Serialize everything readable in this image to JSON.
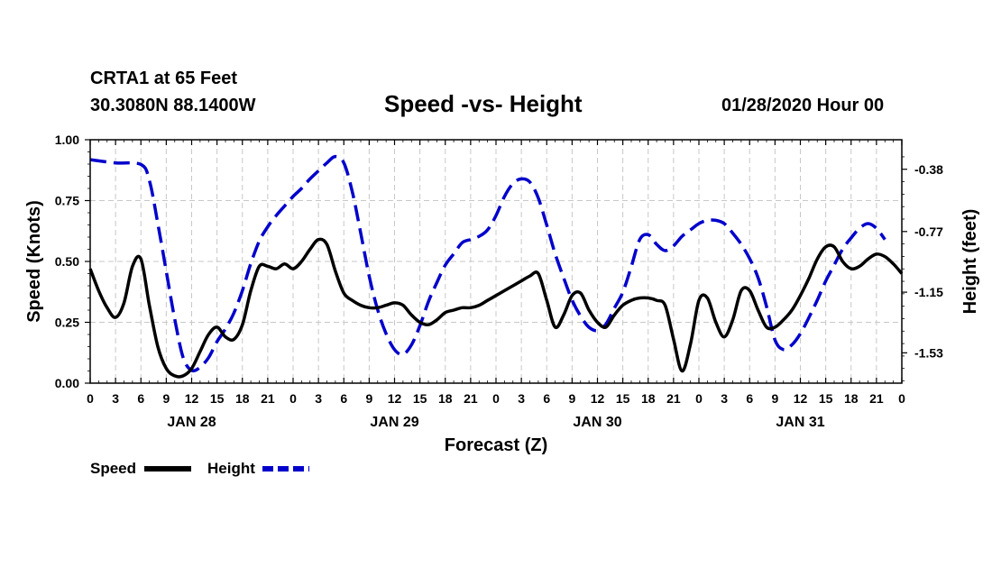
{
  "header": {
    "station": "CRTA1 at 65 Feet",
    "coords": "30.3080N 88.1400W",
    "title": "Speed -vs- Height",
    "datetime": "01/28/2020 Hour 00"
  },
  "chart_data": {
    "type": "line",
    "title": "Speed -vs- Height",
    "xlabel": "Forecast (Z)",
    "ylabel_left": "Speed (Knots)",
    "ylabel_right": "Height (feet)",
    "ylim_left": [
      0,
      1
    ],
    "ylim_right": [
      -1.72,
      -0.195
    ],
    "x_hours_range": [
      0,
      96
    ],
    "x_tick_labels": [
      "0",
      "3",
      "6",
      "9",
      "12",
      "15",
      "18",
      "21",
      "0",
      "3",
      "6",
      "9",
      "12",
      "15",
      "18",
      "21",
      "0",
      "3",
      "6",
      "9",
      "12",
      "15",
      "18",
      "21",
      "0",
      "3",
      "6",
      "9",
      "12",
      "15",
      "18",
      "21",
      "0"
    ],
    "day_labels": [
      {
        "hour": 12,
        "label": "JAN 28"
      },
      {
        "hour": 36,
        "label": "JAN 29"
      },
      {
        "hour": 60,
        "label": "JAN 30"
      },
      {
        "hour": 84,
        "label": "JAN 31"
      }
    ],
    "y_left_ticks": [
      "0.00",
      "0.25",
      "0.50",
      "0.75",
      "1.00"
    ],
    "y_right_ticks": [
      "-0.38",
      "-0.77",
      "-1.15",
      "-1.53"
    ],
    "grid": true,
    "series": [
      {
        "name": "Speed",
        "axis": "left",
        "color": "#000000",
        "style": "solid",
        "points": [
          [
            0,
            0.47
          ],
          [
            1,
            0.38
          ],
          [
            2,
            0.31
          ],
          [
            3,
            0.27
          ],
          [
            4,
            0.33
          ],
          [
            5,
            0.48
          ],
          [
            6,
            0.51
          ],
          [
            7,
            0.32
          ],
          [
            8,
            0.15
          ],
          [
            9,
            0.06
          ],
          [
            10,
            0.03
          ],
          [
            11,
            0.03
          ],
          [
            12,
            0.06
          ],
          [
            13,
            0.13
          ],
          [
            14,
            0.2
          ],
          [
            15,
            0.23
          ],
          [
            16,
            0.19
          ],
          [
            17,
            0.18
          ],
          [
            18,
            0.24
          ],
          [
            19,
            0.38
          ],
          [
            20,
            0.48
          ],
          [
            21,
            0.48
          ],
          [
            22,
            0.47
          ],
          [
            23,
            0.49
          ],
          [
            24,
            0.47
          ],
          [
            25,
            0.5
          ],
          [
            26,
            0.55
          ],
          [
            27,
            0.59
          ],
          [
            28,
            0.57
          ],
          [
            29,
            0.46
          ],
          [
            30,
            0.37
          ],
          [
            31,
            0.34
          ],
          [
            32,
            0.32
          ],
          [
            33,
            0.31
          ],
          [
            34,
            0.31
          ],
          [
            35,
            0.32
          ],
          [
            36,
            0.33
          ],
          [
            37,
            0.32
          ],
          [
            38,
            0.28
          ],
          [
            39,
            0.25
          ],
          [
            40,
            0.24
          ],
          [
            41,
            0.26
          ],
          [
            42,
            0.29
          ],
          [
            43,
            0.3
          ],
          [
            44,
            0.31
          ],
          [
            45,
            0.31
          ],
          [
            46,
            0.32
          ],
          [
            47,
            0.34
          ],
          [
            48,
            0.36
          ],
          [
            49,
            0.38
          ],
          [
            50,
            0.4
          ],
          [
            51,
            0.42
          ],
          [
            52,
            0.44
          ],
          [
            53,
            0.45
          ],
          [
            54,
            0.34
          ],
          [
            55,
            0.23
          ],
          [
            56,
            0.28
          ],
          [
            57,
            0.36
          ],
          [
            58,
            0.37
          ],
          [
            59,
            0.3
          ],
          [
            60,
            0.25
          ],
          [
            61,
            0.23
          ],
          [
            62,
            0.28
          ],
          [
            63,
            0.32
          ],
          [
            64,
            0.34
          ],
          [
            65,
            0.35
          ],
          [
            66,
            0.35
          ],
          [
            67,
            0.34
          ],
          [
            68,
            0.32
          ],
          [
            69,
            0.18
          ],
          [
            70,
            0.05
          ],
          [
            71,
            0.16
          ],
          [
            72,
            0.34
          ],
          [
            73,
            0.35
          ],
          [
            74,
            0.25
          ],
          [
            75,
            0.19
          ],
          [
            76,
            0.26
          ],
          [
            77,
            0.38
          ],
          [
            78,
            0.38
          ],
          [
            79,
            0.3
          ],
          [
            80,
            0.23
          ],
          [
            81,
            0.23
          ],
          [
            82,
            0.26
          ],
          [
            83,
            0.3
          ],
          [
            84,
            0.36
          ],
          [
            85,
            0.43
          ],
          [
            86,
            0.51
          ],
          [
            87,
            0.56
          ],
          [
            88,
            0.56
          ],
          [
            89,
            0.5
          ],
          [
            90,
            0.47
          ],
          [
            91,
            0.48
          ],
          [
            92,
            0.51
          ],
          [
            93,
            0.53
          ],
          [
            94,
            0.52
          ],
          [
            95,
            0.49
          ],
          [
            96,
            0.45
          ]
        ]
      },
      {
        "name": "Height",
        "axis": "right",
        "color": "#0000cc",
        "style": "dashed",
        "points": [
          [
            0,
            -0.32
          ],
          [
            3,
            -0.34
          ],
          [
            6,
            -0.35
          ],
          [
            7,
            -0.45
          ],
          [
            8,
            -0.72
          ],
          [
            9,
            -1.02
          ],
          [
            10,
            -1.32
          ],
          [
            11,
            -1.56
          ],
          [
            12,
            -1.64
          ],
          [
            13,
            -1.62
          ],
          [
            14,
            -1.56
          ],
          [
            15,
            -1.46
          ],
          [
            16,
            -1.38
          ],
          [
            17,
            -1.28
          ],
          [
            18,
            -1.14
          ],
          [
            19,
            -0.97
          ],
          [
            20,
            -0.83
          ],
          [
            21,
            -0.74
          ],
          [
            22,
            -0.67
          ],
          [
            23,
            -0.61
          ],
          [
            24,
            -0.55
          ],
          [
            25,
            -0.5
          ],
          [
            26,
            -0.44
          ],
          [
            27,
            -0.39
          ],
          [
            28,
            -0.34
          ],
          [
            29,
            -0.3
          ],
          [
            30,
            -0.34
          ],
          [
            31,
            -0.52
          ],
          [
            32,
            -0.78
          ],
          [
            33,
            -1.05
          ],
          [
            34,
            -1.26
          ],
          [
            35,
            -1.41
          ],
          [
            36,
            -1.51
          ],
          [
            37,
            -1.54
          ],
          [
            38,
            -1.48
          ],
          [
            39,
            -1.36
          ],
          [
            40,
            -1.21
          ],
          [
            41,
            -1.09
          ],
          [
            42,
            -0.98
          ],
          [
            43,
            -0.91
          ],
          [
            44,
            -0.84
          ],
          [
            45,
            -0.82
          ],
          [
            46,
            -0.8
          ],
          [
            47,
            -0.76
          ],
          [
            48,
            -0.67
          ],
          [
            49,
            -0.55
          ],
          [
            50,
            -0.47
          ],
          [
            51,
            -0.44
          ],
          [
            52,
            -0.46
          ],
          [
            53,
            -0.56
          ],
          [
            54,
            -0.73
          ],
          [
            55,
            -0.91
          ],
          [
            56,
            -1.06
          ],
          [
            57,
            -1.2
          ],
          [
            58,
            -1.3
          ],
          [
            59,
            -1.37
          ],
          [
            60,
            -1.39
          ],
          [
            61,
            -1.35
          ],
          [
            62,
            -1.25
          ],
          [
            63,
            -1.15
          ],
          [
            64,
            -0.99
          ],
          [
            65,
            -0.82
          ],
          [
            66,
            -0.79
          ],
          [
            67,
            -0.85
          ],
          [
            68,
            -0.89
          ],
          [
            69,
            -0.86
          ],
          [
            70,
            -0.8
          ],
          [
            71,
            -0.76
          ],
          [
            72,
            -0.72
          ],
          [
            73,
            -0.7
          ],
          [
            74,
            -0.7
          ],
          [
            75,
            -0.72
          ],
          [
            76,
            -0.78
          ],
          [
            77,
            -0.85
          ],
          [
            78,
            -0.94
          ],
          [
            79,
            -1.06
          ],
          [
            80,
            -1.24
          ],
          [
            81,
            -1.45
          ],
          [
            82,
            -1.51
          ],
          [
            83,
            -1.48
          ],
          [
            84,
            -1.41
          ],
          [
            85,
            -1.31
          ],
          [
            86,
            -1.2
          ],
          [
            87,
            -1.08
          ],
          [
            88,
            -0.98
          ],
          [
            89,
            -0.88
          ],
          [
            90,
            -0.81
          ],
          [
            91,
            -0.75
          ],
          [
            92,
            -0.72
          ],
          [
            93,
            -0.75
          ],
          [
            94,
            -0.82
          ]
        ]
      }
    ]
  },
  "legend": {
    "speed_label": "Speed",
    "height_label": "Height"
  }
}
